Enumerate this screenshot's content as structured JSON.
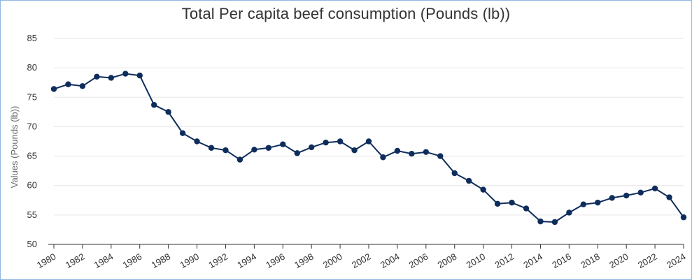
{
  "chart_data": {
    "type": "line",
    "title": "Total Per capita beef consumption (Pounds (lb))",
    "xlabel": "",
    "ylabel": "Values (Pounds (lb))",
    "ylim": [
      50,
      85
    ],
    "xlim": [
      1980,
      2024
    ],
    "yticks": [
      "50",
      "55",
      "60",
      "65",
      "70",
      "75",
      "80",
      "85"
    ],
    "xticks": [
      "1980",
      "1982",
      "1984",
      "1986",
      "1988",
      "1990",
      "1992",
      "1994",
      "1996",
      "1998",
      "2000",
      "2002",
      "2004",
      "2006",
      "2008",
      "2010",
      "2012",
      "2014",
      "2016",
      "2018",
      "2020",
      "2022",
      "2024"
    ],
    "grid": true,
    "legend": "none",
    "series": [
      {
        "name": "Total Per capita beef consumption",
        "color": "#0f2d5c",
        "x": [
          1980,
          1981,
          1982,
          1983,
          1984,
          1985,
          1986,
          1987,
          1988,
          1989,
          1990,
          1991,
          1992,
          1993,
          1994,
          1995,
          1996,
          1997,
          1998,
          1999,
          2000,
          2001,
          2002,
          2003,
          2004,
          2005,
          2006,
          2007,
          2008,
          2009,
          2010,
          2011,
          2012,
          2013,
          2014,
          2015,
          2016,
          2017,
          2018,
          2019,
          2020,
          2021,
          2022,
          2023,
          2024
        ],
        "values": [
          76.4,
          77.2,
          76.9,
          78.5,
          78.3,
          79.0,
          78.7,
          73.7,
          72.5,
          68.9,
          67.5,
          66.4,
          66.0,
          64.4,
          66.1,
          66.4,
          67.0,
          65.5,
          66.5,
          67.3,
          67.5,
          66.0,
          67.5,
          64.8,
          65.9,
          65.4,
          65.7,
          65.0,
          62.1,
          60.8,
          59.3,
          56.9,
          57.1,
          56.1,
          53.9,
          53.8,
          55.4,
          56.8,
          57.1,
          57.9,
          58.3,
          58.8,
          59.5,
          58.0,
          54.6
        ]
      }
    ]
  }
}
